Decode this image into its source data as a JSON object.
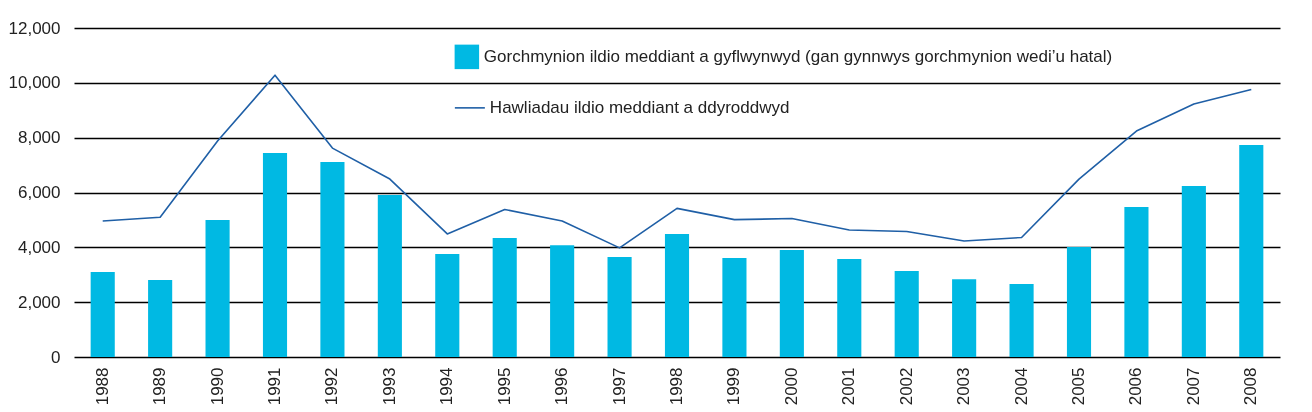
{
  "chart_data": {
    "type": "bar",
    "categories": [
      "1988",
      "1989",
      "1990",
      "1991",
      "1992",
      "1993",
      "1994",
      "1995",
      "1996",
      "1997",
      "1998",
      "1999",
      "2000",
      "2001",
      "2002",
      "2003",
      "2004",
      "2005",
      "2006",
      "2007",
      "2008"
    ],
    "series": [
      {
        "name": "Gorchmynion ildio meddiant a gyflwynwyd (gan gynnwys gorchmynion wedi’u hatal)",
        "color": "#00b9e3",
        "values": [
          3100,
          2810,
          5000,
          7440,
          7110,
          5910,
          3760,
          4340,
          4080,
          3650,
          4490,
          3610,
          3900,
          3570,
          3140,
          2840,
          2660,
          4010,
          5470,
          6240,
          7730
        ]
      },
      {
        "name": "Hawliadau ildio meddiant a ddyroddwyd",
        "type": "line",
        "color": "#1f5fa6",
        "values": [
          4960,
          5100,
          7880,
          10280,
          7620,
          6490,
          4490,
          5380,
          4960,
          3980,
          5420,
          5010,
          5050,
          4630,
          4580,
          4230,
          4360,
          6490,
          8240,
          9230,
          9760
        ]
      }
    ],
    "ylim": [
      0,
      12000
    ],
    "yticks": [
      0,
      {
        "value": 2000,
        "label": "2,000"
      },
      {
        "value": 4000,
        "label": "4,000"
      },
      {
        "value": 6000,
        "label": "6,000"
      },
      {
        "value": 8000,
        "label": "8,000"
      },
      {
        "value": 10000,
        "label": "10,000"
      },
      {
        "value": 12000,
        "label": "12,000"
      }
    ],
    "grid": "y",
    "legend": "top right"
  }
}
